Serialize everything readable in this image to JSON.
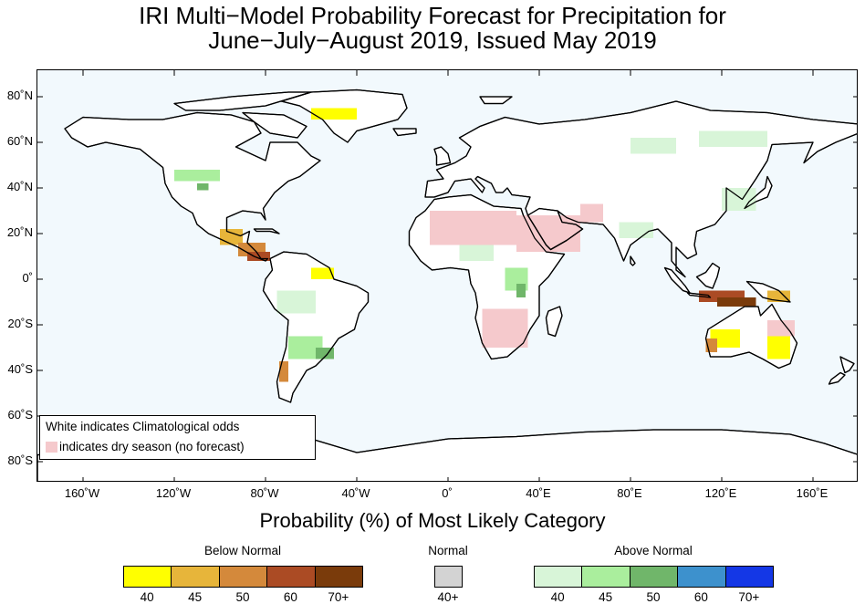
{
  "title": {
    "line1": "IRI Multi−Model Probability Forecast for Precipitation for",
    "line2": "June−July−August 2019, Issued May 2019"
  },
  "map": {
    "ocean_color": "#f2f9fd",
    "land_color": "#ffffff",
    "dry_season_color": "#f5c9cc",
    "lat_labels": [
      "80˚N",
      "60˚N",
      "40˚N",
      "20˚N",
      "0˚",
      "20˚S",
      "40˚S",
      "60˚S",
      "80˚S"
    ],
    "lon_labels": [
      "160˚W",
      "120˚W",
      "80˚W",
      "40˚W",
      "0˚",
      "40˚E",
      "80˚E",
      "120˚E",
      "160˚E"
    ],
    "x_range": [
      -180,
      180
    ],
    "y_range": [
      -90,
      90
    ]
  },
  "legend": {
    "line1": "White indicates Climatological odds",
    "line2": "indicates dry season (no forecast)"
  },
  "x_axis_title": "Probability (%) of Most Likely Category",
  "colorbar": {
    "below": {
      "title": "Below Normal",
      "bins": [
        {
          "label": "40",
          "color": "#ffff00"
        },
        {
          "label": "45",
          "color": "#e7b53a"
        },
        {
          "label": "50",
          "color": "#d4893b"
        },
        {
          "label": "60",
          "color": "#ab4b24"
        },
        {
          "label": "70+",
          "color": "#7a3b0b"
        }
      ]
    },
    "normal": {
      "title": "Normal",
      "bins": [
        {
          "label": "40+",
          "color": "#d3d3d3"
        }
      ]
    },
    "above": {
      "title": "Above Normal",
      "bins": [
        {
          "label": "40",
          "color": "#d8f5d8"
        },
        {
          "label": "45",
          "color": "#aaee9d"
        },
        {
          "label": "50",
          "color": "#70b66a"
        },
        {
          "label": "60",
          "color": "#3d91cd"
        },
        {
          "label": "70+",
          "color": "#1437e6"
        }
      ]
    }
  }
}
